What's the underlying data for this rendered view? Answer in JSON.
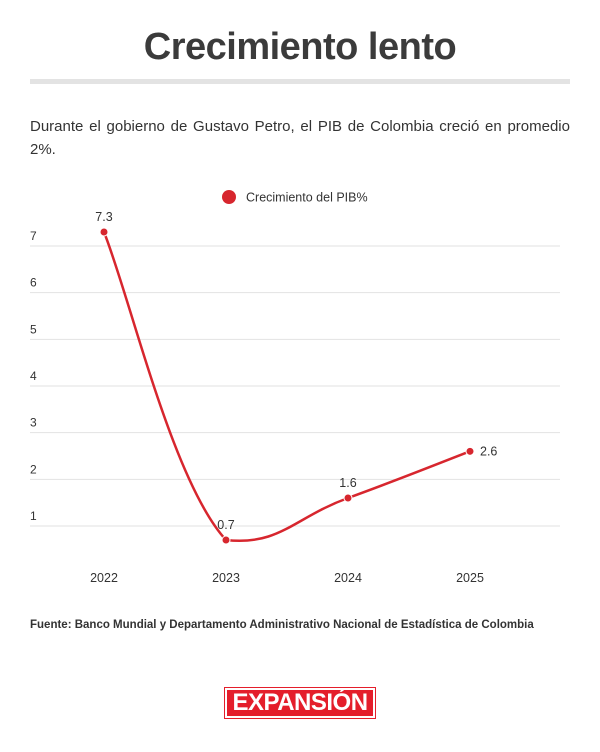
{
  "header": {
    "title": "Crecimiento lento",
    "subtitle": "Durante el gobierno de Gustavo Petro, el PIB de Colombia creció en promedio 2%."
  },
  "chart_data": {
    "type": "line",
    "x": [
      "2022",
      "2023",
      "2024",
      "2025"
    ],
    "series": [
      {
        "name": "Crecimiento del PIB%",
        "values": [
          7.3,
          0.7,
          1.6,
          2.6
        ],
        "color": "#d7262e"
      }
    ],
    "yticks": [
      1,
      2,
      3,
      4,
      5,
      6,
      7
    ],
    "ylim": [
      0.4,
      7.3
    ],
    "grid": true,
    "legend": "top-center"
  },
  "footer": {
    "source": "Fuente: Banco Mundial y Departamento Administrativo Nacional de Estadística de Colombia",
    "logo": "EXPANSIÓN"
  }
}
